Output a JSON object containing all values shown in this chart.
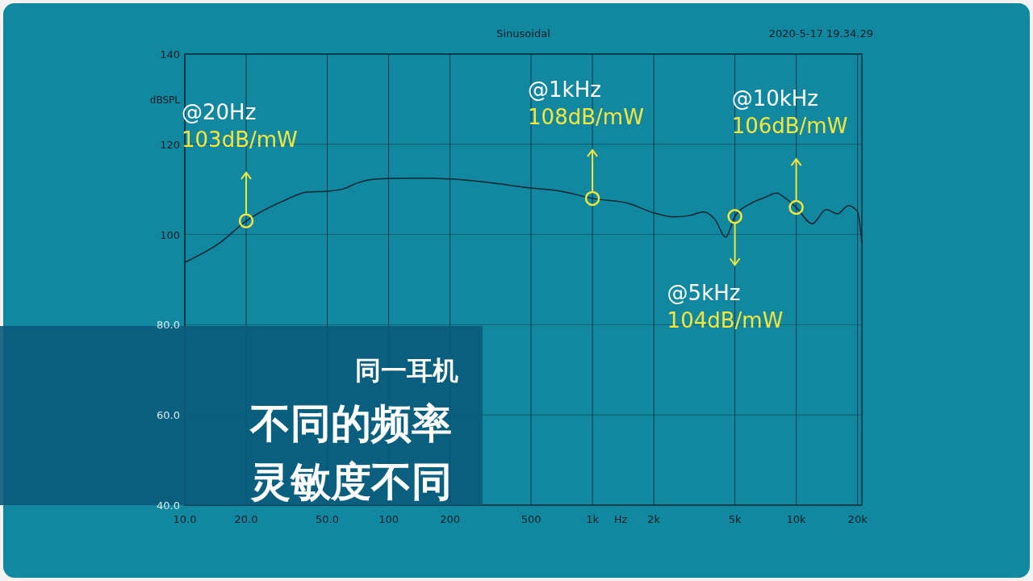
{
  "chart_data": {
    "type": "line",
    "title": "Sinusoidal",
    "subtitle": "2020-5-17 19.34.29",
    "xlabel": "Hz",
    "ylabel": "dBSPL",
    "log": "x",
    "grid": true,
    "marker": "none",
    "line_style": "solid",
    "xlim": [
      10,
      21000
    ],
    "ylim": [
      40,
      140
    ],
    "xticks": [
      {
        "value": 10,
        "label": "10.0"
      },
      {
        "value": 20,
        "label": "20.0"
      },
      {
        "value": 50,
        "label": "50.0"
      },
      100,
      200,
      500,
      {
        "value": 1000,
        "label": "1k"
      },
      {
        "value": 2000,
        "label": "2k"
      },
      {
        "value": 5000,
        "label": "5k"
      },
      {
        "value": 10000,
        "label": "10k"
      },
      {
        "value": 20000,
        "label": "20k"
      }
    ],
    "yticks": [
      {
        "value": 40,
        "label": "40.0"
      },
      {
        "value": 60,
        "label": "60.0"
      },
      {
        "value": 80,
        "label": "80.0"
      },
      100,
      120,
      140
    ],
    "x": [
      10,
      15,
      20,
      30,
      40,
      50,
      60,
      70,
      80,
      100,
      150,
      200,
      300,
      500,
      700,
      1000,
      1500,
      2000,
      2500,
      3000,
      3500,
      4000,
      4500,
      5000,
      6000,
      7000,
      8000,
      9000,
      10000,
      12000,
      14000,
      16000,
      18000,
      20000,
      21000
    ],
    "series": [
      {
        "color": "#0b2730",
        "values": [
          93.8,
          98.3,
          103,
          107.3,
          109.4,
          109.6,
          110.1,
          111.4,
          112.1,
          112.4,
          112.5,
          112.3,
          111.6,
          110.3,
          109.6,
          108,
          106.9,
          104.8,
          103.9,
          104.2,
          105,
          103.3,
          99.4,
          104,
          106.9,
          108.2,
          109.2,
          107.8,
          106,
          102.4,
          105.5,
          104.6,
          106.4,
          105,
          98
        ]
      }
    ],
    "annotations": [
      {
        "text": "@20Hz\n103dB/mW",
        "x": 20,
        "y": 103
      },
      {
        "text": "@1kHz\n108dB/mW",
        "x": 1000,
        "y": 108
      },
      {
        "text": "@5kHz\n104dB/mW",
        "x": 5000,
        "y": 104
      },
      {
        "text": "@10kHz\n106dB/mW",
        "x": 10000,
        "y": 106
      },
      "同一耳机",
      "不同的频率",
      "灵敏度不同"
    ]
  }
}
